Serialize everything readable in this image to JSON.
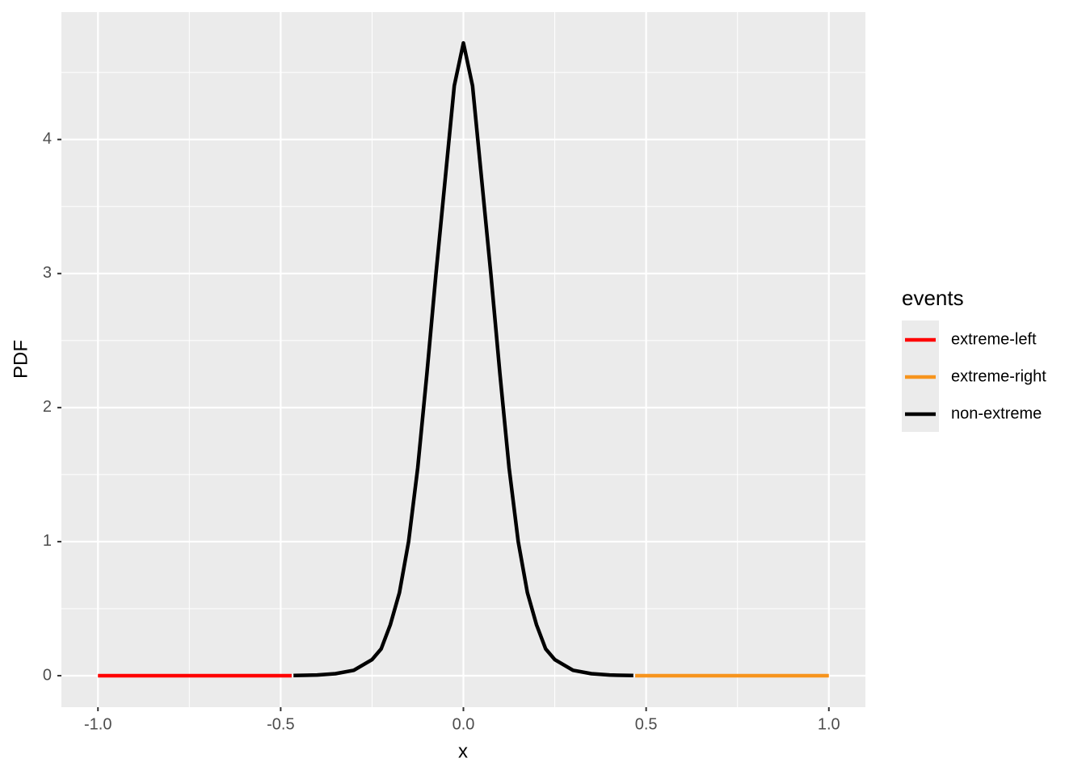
{
  "chart_data": {
    "type": "line",
    "x_label": "x",
    "y_label": "PDF",
    "legend_title": "events",
    "legend_position": "right",
    "xlim": [
      -1.1,
      1.1
    ],
    "ylim": [
      -0.235,
      4.95
    ],
    "xticks": [
      {
        "value": -1,
        "label": "-1.0"
      },
      -0.5,
      {
        "value": 0,
        "label": "0.0"
      },
      0.5,
      {
        "value": 1,
        "label": "1.0"
      }
    ],
    "yticks": [
      0,
      1,
      2,
      3,
      4
    ],
    "x_minor_breaks": [
      -0.75,
      -0.25,
      0.25,
      0.75
    ],
    "y_minor_breaks": [
      0.5,
      1.5,
      2.5,
      3.5,
      4.5
    ],
    "grid": true,
    "series": [
      {
        "name": "extreme-left",
        "color": "#ff0000",
        "x": [
          -1,
          -0.47
        ],
        "values": [
          0,
          0
        ]
      },
      {
        "name": "extreme-right",
        "color": "#f7941d",
        "x": [
          0.47,
          1
        ],
        "values": [
          0,
          0
        ]
      },
      {
        "name": "non-extreme",
        "color": "#000000",
        "x": [
          -0.465,
          -0.4,
          -0.35,
          -0.3,
          -0.25,
          -0.225,
          -0.2,
          -0.175,
          -0.15,
          -0.125,
          -0.1,
          -0.075,
          -0.05,
          -0.025,
          0,
          0.025,
          0.05,
          0.075,
          0.1,
          0.125,
          0.15,
          0.175,
          0.2,
          0.225,
          0.25,
          0.3,
          0.35,
          0.4,
          0.465
        ],
        "values": [
          0.001,
          0.005,
          0.015,
          0.04,
          0.12,
          0.2,
          0.38,
          0.62,
          1.0,
          1.55,
          2.25,
          3.0,
          3.7,
          4.4,
          4.72,
          4.4,
          3.7,
          3.0,
          2.25,
          1.55,
          1.0,
          0.62,
          0.38,
          0.2,
          0.12,
          0.04,
          0.015,
          0.005,
          0.001
        ]
      }
    ]
  }
}
